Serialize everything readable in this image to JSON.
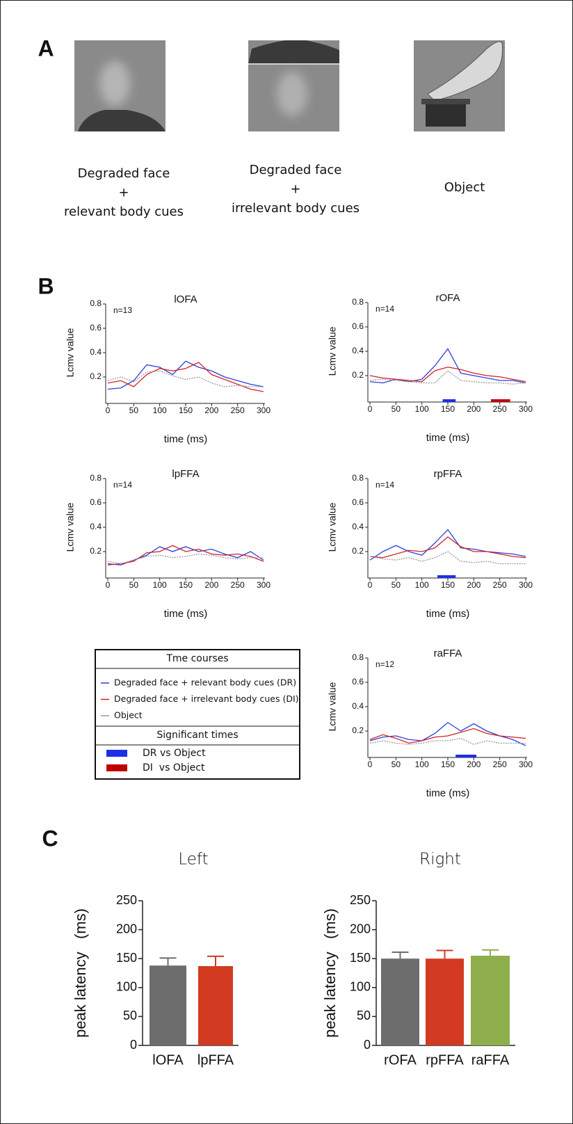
{
  "panel_labels": [
    "A",
    "B",
    "C"
  ],
  "panel_a": {
    "captions": [
      [
        "Degraded face",
        "+",
        "relevant body cues"
      ],
      [
        "Degraded face",
        "+",
        "irrelevant body cues"
      ],
      [
        "Object"
      ]
    ]
  },
  "legend": {
    "title": "Tme courses",
    "series": [
      {
        "name": "Degraded face + relevant body cues (DR)",
        "color": "#2a3ee0"
      },
      {
        "name": "Degraded face + irrelevant body cues (DI)",
        "color": "#d42020"
      },
      {
        "name": "Object",
        "color": "#999999"
      }
    ],
    "sig_title": "Significant times",
    "significance": [
      {
        "name": "DR vs Object",
        "color": "#1b2fe8"
      },
      {
        "name": "DI  vs Object",
        "color": "#c00000"
      }
    ]
  },
  "chart_data": [
    {
      "type": "line",
      "title": "lOFA",
      "annotation": "n=13",
      "ylabel": "Lcmv value",
      "xlabel": "time (ms)",
      "x": [
        0,
        25,
        50,
        75,
        100,
        125,
        150,
        175,
        200,
        225,
        250,
        275,
        300
      ],
      "xlim": [
        0,
        300
      ],
      "xticks": [
        0,
        50,
        100,
        150,
        200,
        250,
        300
      ],
      "ylim": [
        0,
        0.8
      ],
      "yticks": [
        0.2,
        0.4,
        0.6,
        0.8
      ],
      "series": [
        {
          "color": "#2a3ee0",
          "values": [
            0.1,
            0.11,
            0.17,
            0.3,
            0.28,
            0.22,
            0.33,
            0.28,
            0.25,
            0.2,
            0.17,
            0.14,
            0.12
          ]
        },
        {
          "color": "#d42020",
          "values": [
            0.15,
            0.17,
            0.12,
            0.22,
            0.27,
            0.25,
            0.27,
            0.32,
            0.22,
            0.18,
            0.14,
            0.1,
            0.08
          ]
        },
        {
          "color": "#999999",
          "values": [
            0.17,
            0.2,
            0.16,
            0.24,
            0.25,
            0.21,
            0.18,
            0.2,
            0.15,
            0.12,
            0.13,
            0.12,
            0.12
          ]
        }
      ],
      "significant": []
    },
    {
      "type": "line",
      "title": "rOFA",
      "annotation": "n=14",
      "ylabel": "Lcmv value",
      "xlabel": "time (ms)",
      "x": [
        0,
        25,
        50,
        75,
        100,
        125,
        150,
        175,
        200,
        225,
        250,
        275,
        300
      ],
      "xlim": [
        0,
        300
      ],
      "xticks": [
        0,
        50,
        100,
        150,
        200,
        250,
        300
      ],
      "ylim": [
        0,
        0.8
      ],
      "yticks": [
        0.2,
        0.4,
        0.6,
        0.8
      ],
      "series": [
        {
          "color": "#2a3ee0",
          "values": [
            0.15,
            0.14,
            0.17,
            0.15,
            0.17,
            0.28,
            0.42,
            0.22,
            0.2,
            0.18,
            0.16,
            0.16,
            0.14
          ]
        },
        {
          "color": "#d42020",
          "values": [
            0.2,
            0.18,
            0.17,
            0.16,
            0.15,
            0.24,
            0.27,
            0.25,
            0.22,
            0.2,
            0.19,
            0.17,
            0.15
          ]
        },
        {
          "color": "#999999",
          "values": [
            0.16,
            0.17,
            0.16,
            0.15,
            0.14,
            0.14,
            0.24,
            0.16,
            0.15,
            0.14,
            0.14,
            0.13,
            0.14
          ]
        }
      ],
      "significant": [
        {
          "color": "#1b2fe8",
          "range": [
            140,
            165
          ]
        },
        {
          "color": "#c00000",
          "range": [
            233,
            270
          ]
        }
      ]
    },
    {
      "type": "line",
      "title": "lpFFA",
      "annotation": "n=14",
      "ylabel": "Lcmv value",
      "xlabel": "time (ms)",
      "x": [
        0,
        25,
        50,
        75,
        100,
        125,
        150,
        175,
        200,
        225,
        250,
        275,
        300
      ],
      "xlim": [
        0,
        300
      ],
      "xticks": [
        0,
        50,
        100,
        150,
        200,
        250,
        300
      ],
      "ylim": [
        0,
        0.8
      ],
      "yticks": [
        0.2,
        0.4,
        0.6,
        0.8
      ],
      "series": [
        {
          "color": "#2a3ee0",
          "values": [
            0.1,
            0.09,
            0.13,
            0.17,
            0.24,
            0.2,
            0.24,
            0.2,
            0.22,
            0.18,
            0.15,
            0.2,
            0.13
          ]
        },
        {
          "color": "#d42020",
          "values": [
            0.09,
            0.1,
            0.12,
            0.19,
            0.2,
            0.25,
            0.2,
            0.22,
            0.18,
            0.17,
            0.18,
            0.16,
            0.12
          ]
        },
        {
          "color": "#999999",
          "values": [
            0.12,
            0.1,
            0.13,
            0.16,
            0.17,
            0.15,
            0.16,
            0.18,
            0.17,
            0.15,
            0.14,
            0.15,
            0.15
          ]
        }
      ],
      "significant": []
    },
    {
      "type": "line",
      "title": "rpFFA",
      "annotation": "n=14",
      "ylabel": "Lcmv value",
      "xlabel": "time (ms)",
      "x": [
        0,
        25,
        50,
        75,
        100,
        125,
        150,
        175,
        200,
        225,
        250,
        275,
        300
      ],
      "xlim": [
        0,
        300
      ],
      "xticks": [
        0,
        50,
        100,
        150,
        200,
        250,
        300
      ],
      "ylim": [
        0,
        0.8
      ],
      "yticks": [
        0.2,
        0.4,
        0.6,
        0.8
      ],
      "series": [
        {
          "color": "#2a3ee0",
          "values": [
            0.13,
            0.2,
            0.25,
            0.2,
            0.17,
            0.27,
            0.38,
            0.23,
            0.22,
            0.2,
            0.19,
            0.18,
            0.16
          ]
        },
        {
          "color": "#d42020",
          "values": [
            0.16,
            0.15,
            0.18,
            0.21,
            0.2,
            0.23,
            0.32,
            0.24,
            0.2,
            0.2,
            0.18,
            0.16,
            0.15
          ]
        },
        {
          "color": "#999999",
          "values": [
            0.16,
            0.14,
            0.13,
            0.15,
            0.12,
            0.15,
            0.2,
            0.12,
            0.11,
            0.12,
            0.1,
            0.1,
            0.1
          ]
        }
      ],
      "significant": [
        {
          "color": "#1b2fe8",
          "range": [
            130,
            165
          ]
        }
      ]
    },
    {
      "type": "line",
      "title": "raFFA",
      "annotation": "n=12",
      "ylabel": "Lcmv value",
      "xlabel": "time (ms)",
      "x": [
        0,
        25,
        50,
        75,
        100,
        125,
        150,
        175,
        200,
        225,
        250,
        275,
        300
      ],
      "xlim": [
        0,
        300
      ],
      "xticks": [
        0,
        50,
        100,
        150,
        200,
        250,
        300
      ],
      "ylim": [
        0,
        0.8
      ],
      "yticks": [
        0.2,
        0.4,
        0.6,
        0.8
      ],
      "series": [
        {
          "color": "#2a3ee0",
          "values": [
            0.12,
            0.15,
            0.16,
            0.13,
            0.12,
            0.18,
            0.27,
            0.2,
            0.26,
            0.2,
            0.16,
            0.13,
            0.08
          ]
        },
        {
          "color": "#d42020",
          "values": [
            0.13,
            0.17,
            0.14,
            0.1,
            0.12,
            0.15,
            0.16,
            0.19,
            0.22,
            0.18,
            0.16,
            0.15,
            0.14
          ]
        },
        {
          "color": "#999999",
          "values": [
            0.1,
            0.12,
            0.1,
            0.09,
            0.1,
            0.12,
            0.12,
            0.14,
            0.09,
            0.12,
            0.1,
            0.1,
            0.1
          ]
        }
      ],
      "significant": [
        {
          "color": "#1b2fe8",
          "range": [
            165,
            205
          ]
        }
      ]
    },
    {
      "type": "bar",
      "title": "Left",
      "ylabel": "peak latency   (ms)",
      "categories": [
        "lOFA",
        "lpFFA"
      ],
      "values": [
        138,
        137
      ],
      "errors": [
        13,
        17
      ],
      "colors": [
        "#6d6d6d",
        "#d23b22"
      ],
      "ylim": [
        0,
        250
      ],
      "yticks": [
        0,
        50,
        100,
        150,
        200,
        250
      ]
    },
    {
      "type": "bar",
      "title": "Right",
      "ylabel": "peak latency   (ms)",
      "categories": [
        "rOFA",
        "rpFFA",
        "raFFA"
      ],
      "values": [
        150,
        150,
        155
      ],
      "errors": [
        11,
        14,
        10
      ],
      "colors": [
        "#6d6d6d",
        "#d23b22",
        "#8fae4c"
      ],
      "ylim": [
        0,
        250
      ],
      "yticks": [
        0,
        50,
        100,
        150,
        200,
        250
      ]
    }
  ]
}
